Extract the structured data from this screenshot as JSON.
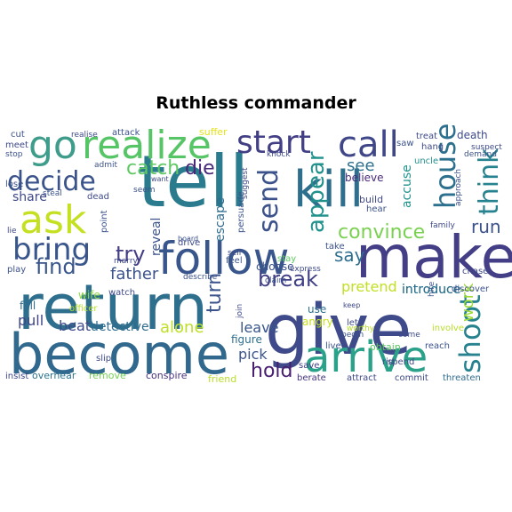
{
  "title": "Ruthless commander",
  "words": [
    {
      "text": "tell",
      "color": "#2b7b8e"
    },
    {
      "text": "kill",
      "color": "#2f6f8e"
    },
    {
      "text": "give",
      "color": "#3e4a89"
    },
    {
      "text": "return",
      "color": "#2e6f8e"
    },
    {
      "text": "make",
      "color": "#433e85"
    },
    {
      "text": "become",
      "color": "#31688e"
    },
    {
      "text": "follow",
      "color": "#39568c"
    },
    {
      "text": "arrive",
      "color": "#2aa289"
    },
    {
      "text": "realize",
      "color": "#56c566"
    },
    {
      "text": "go",
      "color": "#3e9c8a"
    },
    {
      "text": "call",
      "color": "#404788"
    },
    {
      "text": "start",
      "color": "#423f85"
    },
    {
      "text": "ask",
      "color": "#c5e021"
    },
    {
      "text": "bring",
      "color": "#39568c"
    },
    {
      "text": "house",
      "color": "#2d708e"
    },
    {
      "text": "think",
      "color": "#26828e"
    },
    {
      "text": "decide",
      "color": "#3a538b"
    },
    {
      "text": "shoot",
      "color": "#26828e"
    },
    {
      "text": "catch",
      "color": "#5ec962"
    },
    {
      "text": "die",
      "color": "#482878"
    },
    {
      "text": "see",
      "color": "#2d708e"
    },
    {
      "text": "send",
      "color": "#3b528b"
    },
    {
      "text": "convince",
      "color": "#7ad151"
    },
    {
      "text": "appear",
      "color": "#21918c"
    },
    {
      "text": "find",
      "color": "#39568c"
    },
    {
      "text": "try",
      "color": "#433e85"
    },
    {
      "text": "break",
      "color": "#424086"
    },
    {
      "text": "run",
      "color": "#3b528b"
    },
    {
      "text": "say",
      "color": "#2e6e8e"
    },
    {
      "text": "turn",
      "color": "#3a538b"
    },
    {
      "text": "hold",
      "color": "#481f70"
    },
    {
      "text": "father",
      "color": "#3b528b"
    },
    {
      "text": "work",
      "color": "#9fda3a"
    },
    {
      "text": "alone",
      "color": "#bddf26"
    },
    {
      "text": "pretend",
      "color": "#c2df23"
    },
    {
      "text": "introduce",
      "color": "#2c728e"
    },
    {
      "text": "beat",
      "color": "#3e4989"
    },
    {
      "text": "detective",
      "color": "#2f6c8e"
    },
    {
      "text": "pull",
      "color": "#3f4788"
    },
    {
      "text": "leave",
      "color": "#39558c"
    },
    {
      "text": "pick",
      "color": "#3a548c"
    },
    {
      "text": "share",
      "color": "#3e4989"
    },
    {
      "text": "escape",
      "color": "#2f6b8e"
    },
    {
      "text": "reveal",
      "color": "#3b528b"
    },
    {
      "text": "accuse",
      "color": "#20938c"
    },
    {
      "text": "believe",
      "color": "#472a7a"
    },
    {
      "text": "choose",
      "color": "#3b528b"
    },
    {
      "text": "fall",
      "color": "#2f6c8e"
    },
    {
      "text": "wife",
      "color": "#8bd646"
    },
    {
      "text": "introduce",
      "color": "#2c728e"
    },
    {
      "text": "angry",
      "color": "#c8e020"
    },
    {
      "text": "use",
      "color": "#2d708e"
    },
    {
      "text": "figure",
      "color": "#2e6e8e"
    },
    {
      "text": "death",
      "color": "#3e4a89"
    },
    {
      "text": "save",
      "color": "#424086"
    },
    {
      "text": "obtain",
      "color": "#5ec962"
    },
    {
      "text": "friend",
      "color": "#b8de29"
    },
    {
      "text": "conspire",
      "color": "#46327e"
    },
    {
      "text": "overhear",
      "color": "#2c728e"
    },
    {
      "text": "remove",
      "color": "#75d054"
    },
    {
      "text": "attract",
      "color": "#3f4788"
    },
    {
      "text": "commit",
      "color": "#3e4989"
    },
    {
      "text": "threaten",
      "color": "#2f6c8e"
    },
    {
      "text": "berate",
      "color": "#46337f"
    },
    {
      "text": "spend",
      "color": "#3f4889"
    },
    {
      "text": "discover",
      "color": "#3b528b"
    },
    {
      "text": "chase",
      "color": "#3e4989"
    },
    {
      "text": "uncle",
      "color": "#21918c"
    },
    {
      "text": "suffer",
      "color": "#e5e419"
    },
    {
      "text": "attack",
      "color": "#3b528b"
    },
    {
      "text": "realise",
      "color": "#3e4989"
    },
    {
      "text": "cut",
      "color": "#3b528b"
    },
    {
      "text": "meet",
      "color": "#3e4989"
    },
    {
      "text": "stop",
      "color": "#3b528b"
    },
    {
      "text": "lose",
      "color": "#3b528b"
    },
    {
      "text": "lie",
      "color": "#3e4989"
    },
    {
      "text": "play",
      "color": "#3b528b"
    },
    {
      "text": "insist",
      "color": "#3e4989"
    },
    {
      "text": "knock",
      "color": "#3e4989"
    },
    {
      "text": "live",
      "color": "#3b528b"
    },
    {
      "text": "take",
      "color": "#3b528b"
    },
    {
      "text": "suggest",
      "color": "#3e4989"
    },
    {
      "text": "persuade",
      "color": "#3b528b"
    },
    {
      "text": "drive",
      "color": "#3e4989"
    },
    {
      "text": "point",
      "color": "#3b528b"
    },
    {
      "text": "marry",
      "color": "#3e4989"
    },
    {
      "text": "admit",
      "color": "#3b528b"
    },
    {
      "text": "dead",
      "color": "#3e4989"
    },
    {
      "text": "steal",
      "color": "#3b528b"
    },
    {
      "text": "watch",
      "color": "#3e4989"
    },
    {
      "text": "officer",
      "color": "#b8de29"
    },
    {
      "text": "slip",
      "color": "#3e4989"
    },
    {
      "text": "begin",
      "color": "#3b528b"
    },
    {
      "text": "come",
      "color": "#3e4989"
    },
    {
      "text": "reach",
      "color": "#3b528b"
    },
    {
      "text": "involve",
      "color": "#b8de29"
    },
    {
      "text": "worthy",
      "color": "#b8de29"
    },
    {
      "text": "build",
      "color": "#3e4989"
    },
    {
      "text": "hear",
      "color": "#3b528b"
    },
    {
      "text": "let",
      "color": "#3e4989"
    },
    {
      "text": "describe",
      "color": "#3b528b"
    },
    {
      "text": "join",
      "color": "#3e4989"
    },
    {
      "text": "feel",
      "color": "#3b528b"
    },
    {
      "text": "sell",
      "color": "#3e4989"
    },
    {
      "text": "claim",
      "color": "#3b528b"
    },
    {
      "text": "stay",
      "color": "#5ec962"
    },
    {
      "text": "express",
      "color": "#3e4989"
    },
    {
      "text": "hire",
      "color": "#3b528b"
    },
    {
      "text": "family",
      "color": "#3e4989"
    },
    {
      "text": "approach",
      "color": "#3b528b"
    },
    {
      "text": "suspect",
      "color": "#3e4989"
    },
    {
      "text": "demand",
      "color": "#3b528b"
    },
    {
      "text": "treat",
      "color": "#3e4989"
    },
    {
      "text": "saw",
      "color": "#3b528b"
    },
    {
      "text": "hang",
      "color": "#3e4989"
    },
    {
      "text": "seem",
      "color": "#3b528b"
    },
    {
      "text": "want",
      "color": "#3e4989"
    },
    {
      "text": "board",
      "color": "#3b528b"
    },
    {
      "text": "keep",
      "color": "#3e4989"
    },
    {
      "text": "rid",
      "color": "#3b528b"
    }
  ]
}
